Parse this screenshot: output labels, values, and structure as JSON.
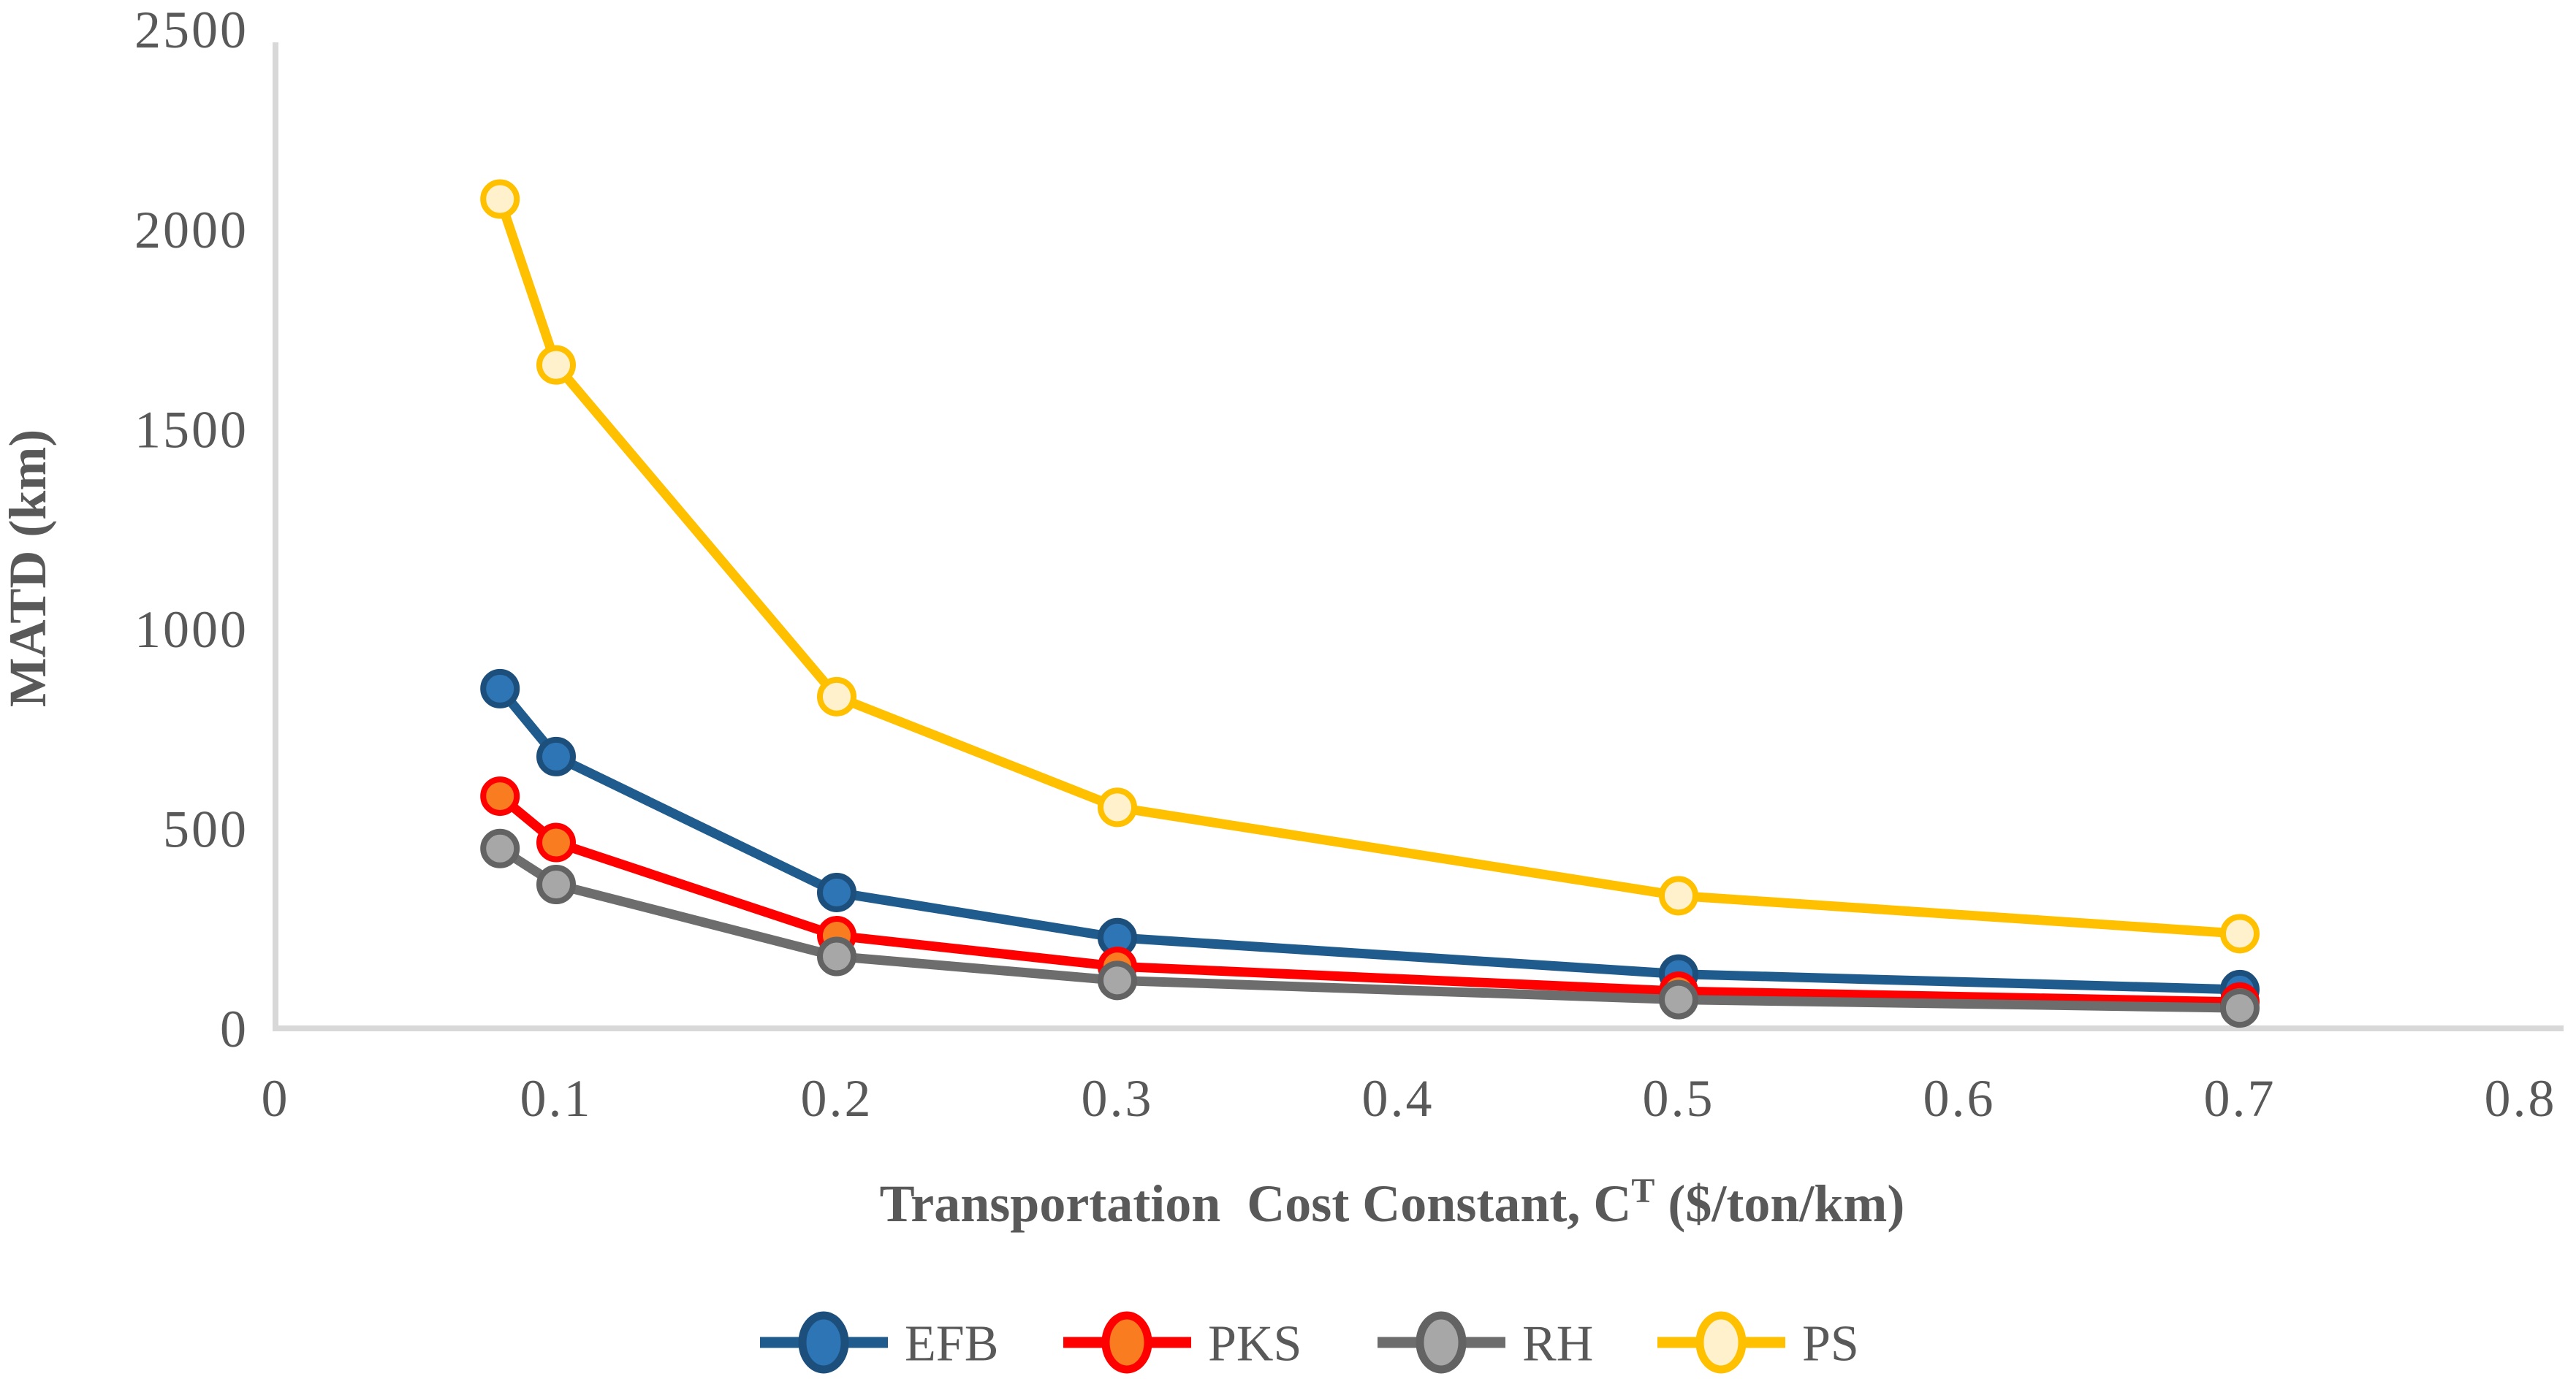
{
  "chart_data": {
    "type": "line",
    "x": [
      0.08,
      0.1,
      0.2,
      0.3,
      0.5,
      0.7
    ],
    "series": [
      {
        "name": "EFB",
        "values": [
          850,
          680,
          340,
          227,
          136,
          97
        ],
        "line_color": "#1F5C8D",
        "marker_fill": "#2E75B6",
        "marker_edge": "#1C4F7C"
      },
      {
        "name": "PKS",
        "values": [
          581,
          465,
          232,
          155,
          93,
          66
        ],
        "line_color": "#FE0000",
        "marker_fill": "#F97C20",
        "marker_edge": "#FE0000"
      },
      {
        "name": "RH",
        "values": [
          450,
          360,
          180,
          120,
          72,
          51
        ],
        "line_color": "#6D6D6D",
        "marker_fill": "#A7A7A7",
        "marker_edge": "#636363"
      },
      {
        "name": "PS",
        "values": [
          2075,
          1660,
          830,
          553,
          332,
          237
        ],
        "line_color": "#FFC000",
        "marker_fill": "#FFF1CB",
        "marker_edge": "#FFC000"
      }
    ],
    "title": "",
    "xlabel_main": "Transportation  Cost Constant, C",
    "xlabel_sup": "T",
    "xlabel_unit": " ($/ton/km)",
    "ylabel": "MATD (km)",
    "xlim": [
      0,
      0.8
    ],
    "ylim": [
      0,
      2500
    ],
    "x_tick_values": [
      0,
      0.1,
      0.2,
      0.3,
      0.4,
      0.5,
      0.6,
      0.7,
      0.8
    ],
    "x_tick_labels": [
      "0",
      "0.1",
      "0.2",
      "0.3",
      "0.4",
      "0.5",
      "0.6",
      "0.7",
      "0.8"
    ],
    "y_tick_values": [
      0,
      500,
      1000,
      1500,
      2000,
      2500
    ],
    "y_tick_labels": [
      "0",
      "500",
      "1000",
      "1500",
      "2000",
      "2500"
    ],
    "grid": false,
    "legend_position": "bottom",
    "legend_labels": [
      "EFB",
      "PKS",
      "RH",
      "PS"
    ],
    "axis_color": "#D8D8D8",
    "text_color": "#595959"
  }
}
